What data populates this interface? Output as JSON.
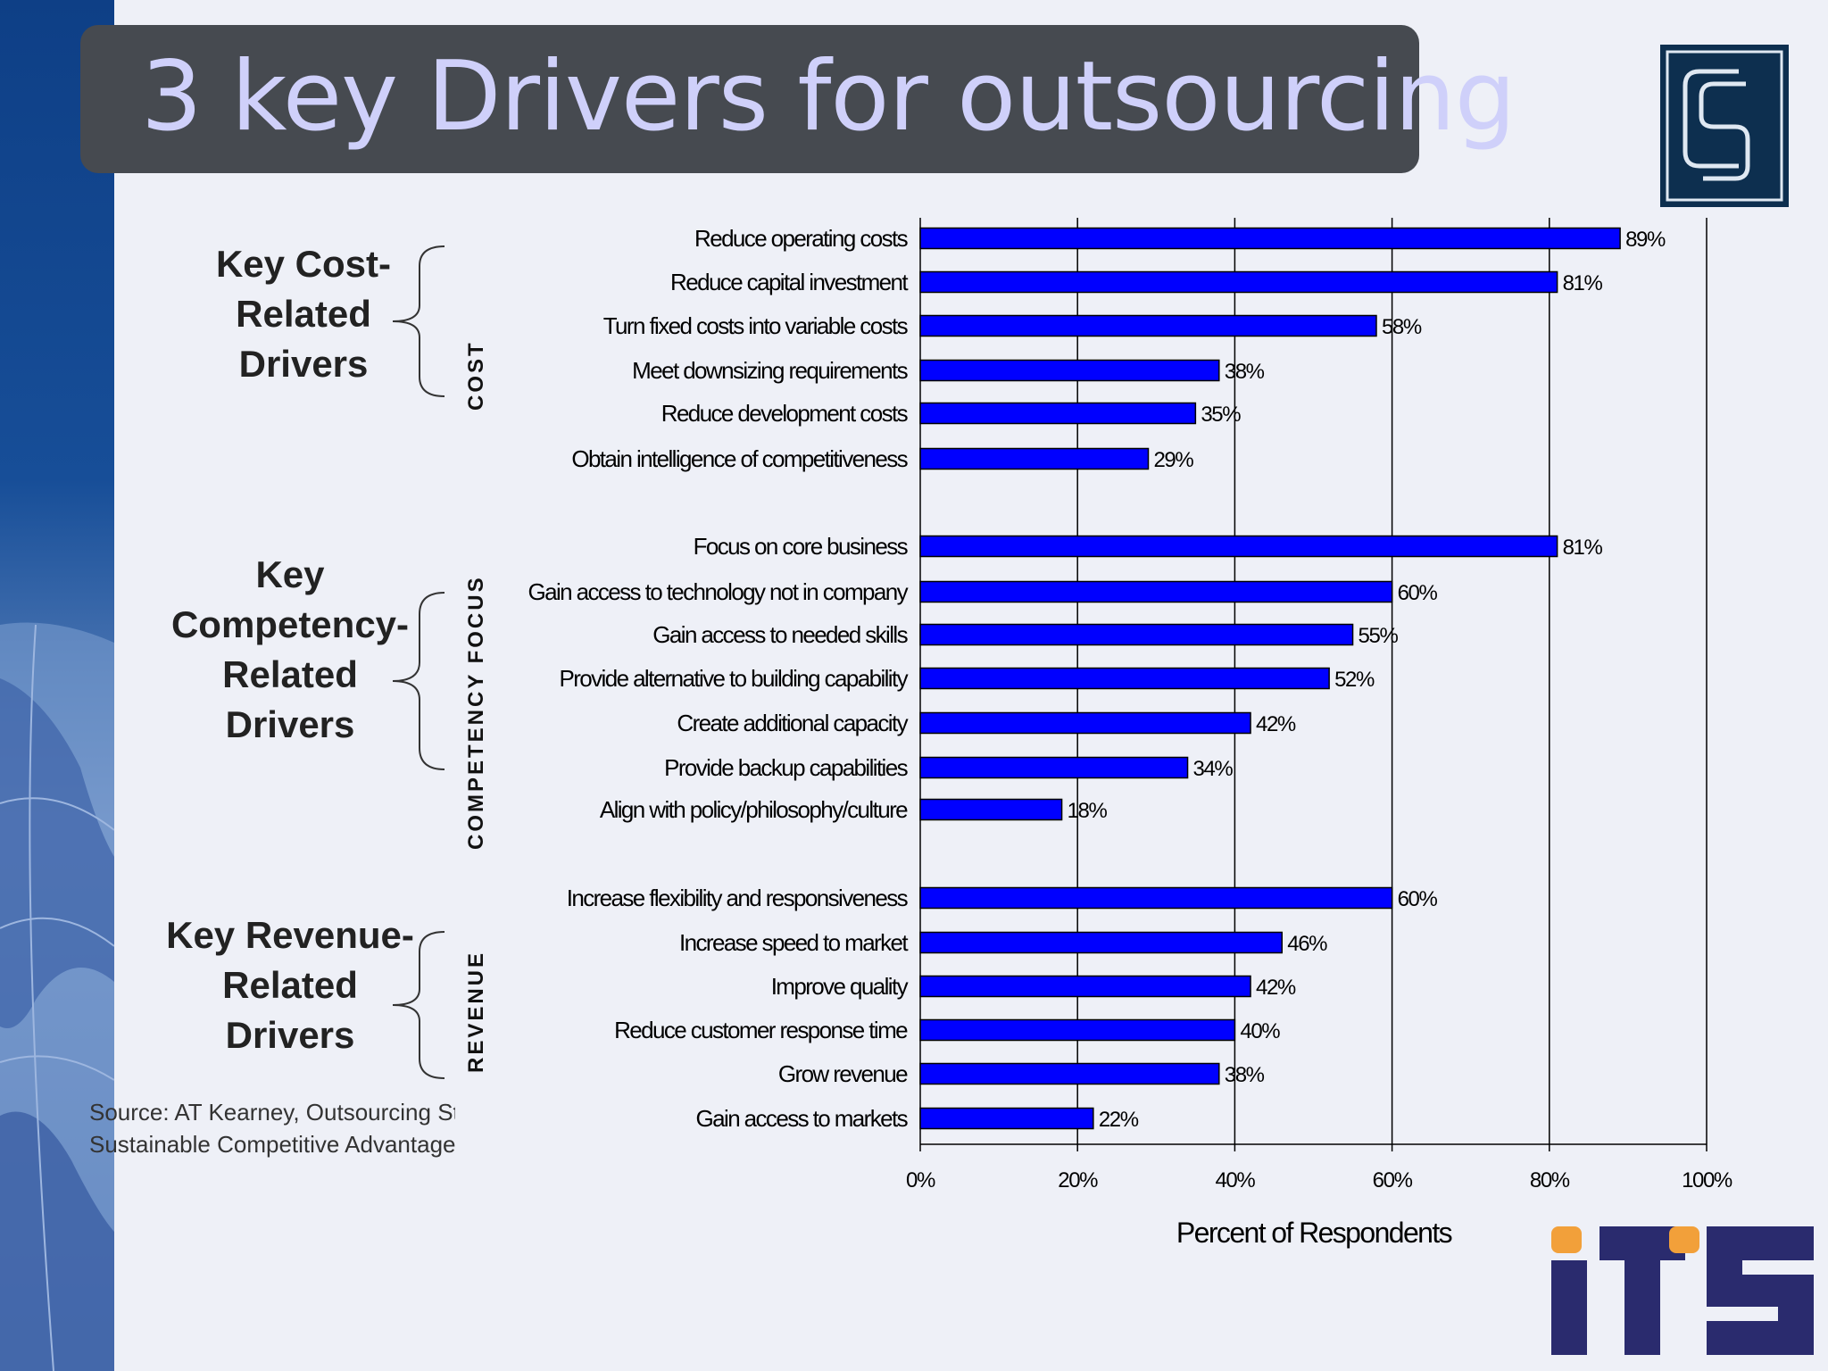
{
  "slide": {
    "title": "3 key Drivers for outsourcing",
    "source_line1": "Source: AT Kearney, Outsourcing St",
    "source_line2": "Sustainable Competitive Advantage,",
    "logos": {
      "top_right": "CS monogram logo",
      "bottom_right": "ITS",
      "bottom_right_colors": [
        "#2a2b6e",
        "#f2a03a"
      ]
    },
    "title_box_color": "#464a50",
    "title_text_color": "#cfd0fa"
  },
  "groups": [
    {
      "lines": [
        "Key Cost-",
        "Related",
        "Drivers"
      ],
      "section": "COST"
    },
    {
      "lines": [
        "Key",
        "Competency-",
        "Related",
        "Drivers"
      ],
      "section": "COMPETENCY FOCUS"
    },
    {
      "lines": [
        "Key Revenue-",
        "Related",
        "Drivers"
      ],
      "section": "REVENUE"
    }
  ],
  "chart_data": {
    "type": "bar",
    "orientation": "horizontal",
    "bar_color": "#0000ff",
    "xlabel": "Percent of Respondents",
    "xlim": [
      0,
      100
    ],
    "xticks": [
      "0%",
      "20%",
      "40%",
      "60%",
      "80%",
      "100%"
    ],
    "grid": "vertical",
    "categories": [
      "Reduce operating costs",
      "Reduce capital investment",
      "Turn fixed costs into variable costs",
      "Meet downsizing requirements",
      "Reduce development costs",
      "Obtain intelligence of competitiveness",
      "Focus on core business",
      "Gain access to technology not in company",
      "Gain access to needed skills",
      "Provide alternative to building capability",
      "Create additional capacity",
      "Provide backup capabilities",
      "Align with policy/philosophy/culture",
      "Increase flexibility and responsiveness",
      "Increase speed to market",
      "Improve quality",
      "Reduce customer response time",
      "Grow revenue",
      "Gain access to markets"
    ],
    "values": [
      89,
      81,
      58,
      38,
      35,
      29,
      81,
      60,
      55,
      52,
      42,
      34,
      18,
      60,
      46,
      42,
      40,
      38,
      22
    ],
    "value_labels": [
      "89%",
      "81%",
      "58%",
      "38%",
      "35%",
      "29%",
      "81%",
      "60%",
      "55%",
      "52%",
      "42%",
      "34%",
      "18%",
      "60%",
      "46%",
      "42%",
      "40%",
      "38%",
      "22%"
    ],
    "group_sizes": [
      6,
      7,
      6
    ]
  }
}
